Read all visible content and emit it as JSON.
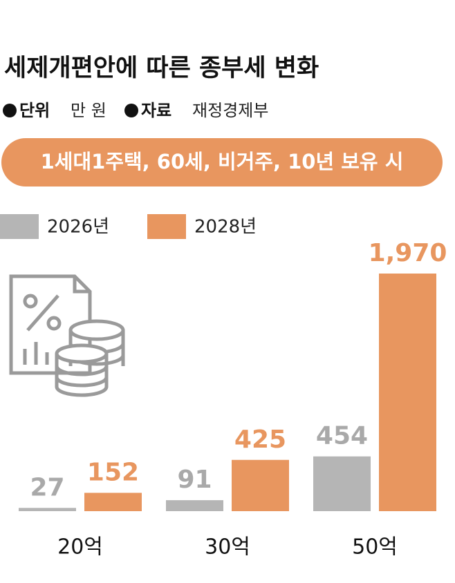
{
  "chart_data": {
    "type": "bar",
    "title": "세제개편안에 따른 종부세 변화",
    "unit_label": "단위",
    "unit": "만 원",
    "source_label": "자료",
    "source": "재정경제부",
    "condition": "1세대1주택, 60세, 비거주, 10년 보유 시",
    "categories": [
      "20억",
      "30억",
      "50억"
    ],
    "series": [
      {
        "name": "2026년",
        "color": "#b5b5b5",
        "label_color": "#a9a9a9",
        "values": [
          27,
          91,
          454
        ]
      },
      {
        "name": "2028년",
        "color": "#e8965f",
        "label_color": "#e8965f",
        "values": [
          152,
          425,
          1970
        ],
        "value_labels": [
          "152",
          "425",
          "1,970"
        ]
      }
    ]
  }
}
